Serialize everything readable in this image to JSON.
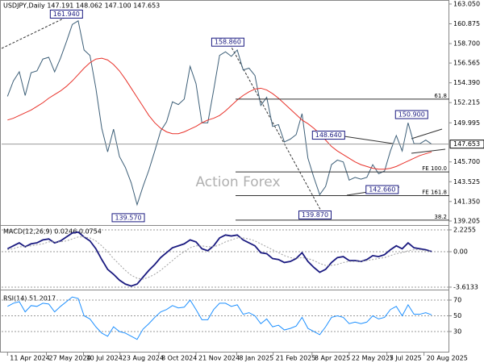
{
  "chart_data": [
    {
      "type": "line",
      "title": "USDJPY,Daily  147.191 148.062 147.100 147.653",
      "watermark": "Action Forex",
      "x": [
        0,
        1,
        2,
        3,
        4,
        5,
        6,
        7,
        8,
        9,
        10,
        11,
        12,
        13,
        14,
        15,
        16,
        17,
        18,
        19,
        20,
        21,
        22,
        23,
        24,
        25,
        26,
        27,
        28,
        29,
        30,
        31,
        32,
        33,
        34,
        35,
        36,
        37,
        38,
        39,
        40,
        41,
        42,
        43,
        44,
        45,
        46,
        47,
        48,
        49,
        50,
        51,
        52,
        53,
        54,
        55,
        56,
        57,
        58,
        59,
        60,
        61,
        62,
        63,
        64,
        65,
        66,
        67,
        68,
        69,
        70,
        71,
        72
      ],
      "xlim": [
        -1,
        75
      ],
      "xticks": [
        {
          "value": 0,
          "label": "11 Apr 2024"
        },
        {
          "value": 6.6,
          "label": "27 May 2024"
        },
        {
          "value": 12.9,
          "label": "10 Jul 2024"
        },
        {
          "value": 19.1,
          "label": "23 Aug 2024"
        },
        {
          "value": 25.7,
          "label": "8 Oct 2024"
        },
        {
          "value": 32,
          "label": "21 Nov 2024"
        },
        {
          "value": 38.9,
          "label": "8 Jan 2025"
        },
        {
          "value": 45.1,
          "label": "21 Feb 2025"
        },
        {
          "value": 51.7,
          "label": "8 Apr 2025"
        },
        {
          "value": 58,
          "label": "22 May 2025"
        },
        {
          "value": 64.4,
          "label": "7 Jul 2025"
        },
        {
          "value": 70.7,
          "label": "20 Aug 2025"
        }
      ],
      "ylim": [
        138.85,
        163.49
      ],
      "yticks": [
        {
          "value": 163.05,
          "label": "163.050"
        },
        160.875,
        {
          "value": 158.7,
          "label": "158.700"
        },
        156.565,
        {
          "value": 154.39,
          "label": "154.390"
        },
        152.215,
        149.995,
        {
          "value": 145.7,
          "label": "145.700"
        },
        143.525,
        {
          "value": 141.35,
          "label": "141.350"
        },
        139.205
      ],
      "current": 147.653,
      "series": [
        {
          "color": "#3d5f78",
          "values": [
            152.9,
            154.6,
            155.6,
            153.0,
            155.5,
            155.7,
            157.0,
            157.2,
            155.6,
            157.1,
            158.9,
            160.8,
            161.2,
            158.0,
            157.4,
            153.8,
            149.4,
            146.8,
            149.3,
            146.3,
            145.1,
            143.4,
            141.0,
            143.0,
            144.8,
            146.9,
            149.1,
            150.1,
            152.3,
            152.0,
            152.6,
            156.2,
            154.3,
            150.0,
            150.0,
            153.6,
            157.4,
            157.8,
            157.3,
            158.0,
            155.8,
            156.0,
            155.2,
            151.9,
            152.8,
            149.6,
            149.8,
            147.9,
            148.2,
            148.7,
            151.0,
            146.1,
            144.0,
            142.1,
            143.0,
            145.4,
            145.9,
            145.7,
            143.7,
            144.0,
            143.8,
            144.0,
            145.4,
            144.4,
            144.7,
            146.9,
            148.6,
            146.9,
            150.0,
            147.7,
            147.7,
            148.1,
            147.65
          ]
        },
        {
          "color": "#e8322a",
          "values": [
            150.3,
            150.5,
            150.8,
            151.1,
            151.4,
            151.8,
            152.2,
            152.7,
            153.1,
            153.5,
            154.0,
            154.6,
            155.3,
            156.0,
            156.6,
            157.0,
            157.1,
            156.9,
            156.4,
            155.7,
            154.8,
            153.8,
            152.8,
            151.8,
            150.8,
            150.0,
            149.4,
            149.0,
            148.8,
            148.8,
            149.0,
            149.3,
            149.6,
            150.0,
            150.3,
            150.5,
            150.8,
            151.3,
            151.9,
            152.5,
            153.0,
            153.4,
            153.7,
            153.8,
            153.6,
            153.2,
            152.7,
            152.1,
            151.5,
            150.9,
            150.3,
            149.9,
            149.4,
            148.8,
            148.1,
            147.4,
            146.9,
            146.5,
            146.1,
            145.7,
            145.4,
            145.2,
            145.0,
            144.9,
            144.9,
            145.0,
            145.2,
            145.5,
            145.8,
            146.1,
            146.4,
            146.6,
            146.8
          ]
        }
      ],
      "annotations": [
        {
          "value": 161.94,
          "label": "161.940",
          "x": 10
        },
        {
          "value": 139.57,
          "label": "139.570",
          "x": 20.5
        },
        {
          "value": 158.86,
          "label": "158.860",
          "x": 37.4
        },
        {
          "value": 139.87,
          "label": "139.870",
          "x": 52.2
        },
        {
          "value": 148.64,
          "label": "148.640",
          "x": 54.5
        },
        {
          "value": 142.66,
          "label": "142.660",
          "x": 63.6
        },
        {
          "value": 150.9,
          "label": "150.900",
          "x": 68.6
        }
      ],
      "levels": [
        {
          "value": 152.6,
          "label": "61.8"
        },
        {
          "value": 144.6,
          "label": "FE 100.0"
        },
        {
          "value": 142.0,
          "label": "FE 161.8"
        },
        {
          "value": 139.3,
          "label": "38.2"
        }
      ]
    },
    {
      "type": "line",
      "title": "MACD(12,26,9) 0.0246 0.0754",
      "ylim": [
        -3.78,
        2.55
      ],
      "yticks": [
        2.2255,
        {
          "value": 0,
          "label": "0.00"
        },
        -3.6133
      ],
      "series": [
        {
          "color": "#1a1a80",
          "values": [
            0.3,
            0.6,
            0.9,
            0.5,
            0.8,
            0.9,
            1.2,
            1.3,
            0.9,
            1.1,
            1.5,
            1.9,
            2.0,
            1.5,
            1.1,
            0.3,
            -0.8,
            -1.8,
            -2.3,
            -2.9,
            -3.3,
            -3.5,
            -3.3,
            -2.6,
            -1.9,
            -1.3,
            -0.6,
            -0.1,
            0.4,
            0.6,
            0.8,
            1.2,
            1.0,
            0.3,
            0.1,
            0.6,
            1.4,
            1.7,
            1.6,
            1.7,
            1.2,
            0.9,
            0.6,
            -0.1,
            -0.2,
            -0.7,
            -0.8,
            -1.1,
            -1.0,
            -0.7,
            -0.1,
            -1.0,
            -1.6,
            -2.1,
            -1.8,
            -1.1,
            -0.6,
            -0.5,
            -0.9,
            -0.9,
            -1.0,
            -0.8,
            -0.4,
            -0.5,
            -0.3,
            0.2,
            0.6,
            0.3,
            0.9,
            0.4,
            0.3,
            0.2,
            0.02
          ]
        },
        {
          "color": "#a0a0a0",
          "values": [
            0.2,
            0.3,
            0.5,
            0.5,
            0.6,
            0.7,
            0.8,
            1.0,
            1.0,
            1.0,
            1.1,
            1.3,
            1.5,
            1.5,
            1.4,
            1.1,
            0.6,
            0.0,
            -0.7,
            -1.3,
            -1.9,
            -2.4,
            -2.7,
            -2.8,
            -2.6,
            -2.3,
            -1.9,
            -1.4,
            -0.9,
            -0.4,
            0.0,
            0.4,
            0.6,
            0.6,
            0.5,
            0.5,
            0.7,
            1.0,
            1.2,
            1.4,
            1.4,
            1.3,
            1.1,
            0.8,
            0.5,
            0.2,
            -0.1,
            -0.4,
            -0.6,
            -0.7,
            -0.6,
            -0.7,
            -0.9,
            -1.2,
            -1.4,
            -1.4,
            -1.3,
            -1.1,
            -1.0,
            -1.0,
            -1.0,
            -0.9,
            -0.8,
            -0.7,
            -0.6,
            -0.4,
            -0.2,
            -0.1,
            0.1,
            0.2,
            0.2,
            0.1,
            0.08
          ]
        }
      ]
    },
    {
      "type": "line",
      "title": "RSI(14) 51.2017",
      "ylim": [
        3.3,
        81.3
      ],
      "yticks": [
        70,
        50,
        30
      ],
      "series": [
        {
          "color": "#1e90ff",
          "values": [
            62,
            66,
            68,
            55,
            63,
            62,
            66,
            65,
            55,
            62,
            68,
            74,
            72,
            50,
            46,
            36,
            28,
            24,
            36,
            30,
            28,
            24,
            20,
            33,
            40,
            48,
            55,
            58,
            63,
            60,
            61,
            70,
            58,
            45,
            45,
            58,
            66,
            66,
            62,
            64,
            52,
            54,
            50,
            40,
            46,
            36,
            38,
            32,
            34,
            37,
            48,
            34,
            30,
            26,
            36,
            48,
            50,
            48,
            40,
            42,
            40,
            42,
            50,
            46,
            48,
            58,
            62,
            50,
            64,
            52,
            52,
            54,
            51.2
          ]
        }
      ]
    }
  ]
}
